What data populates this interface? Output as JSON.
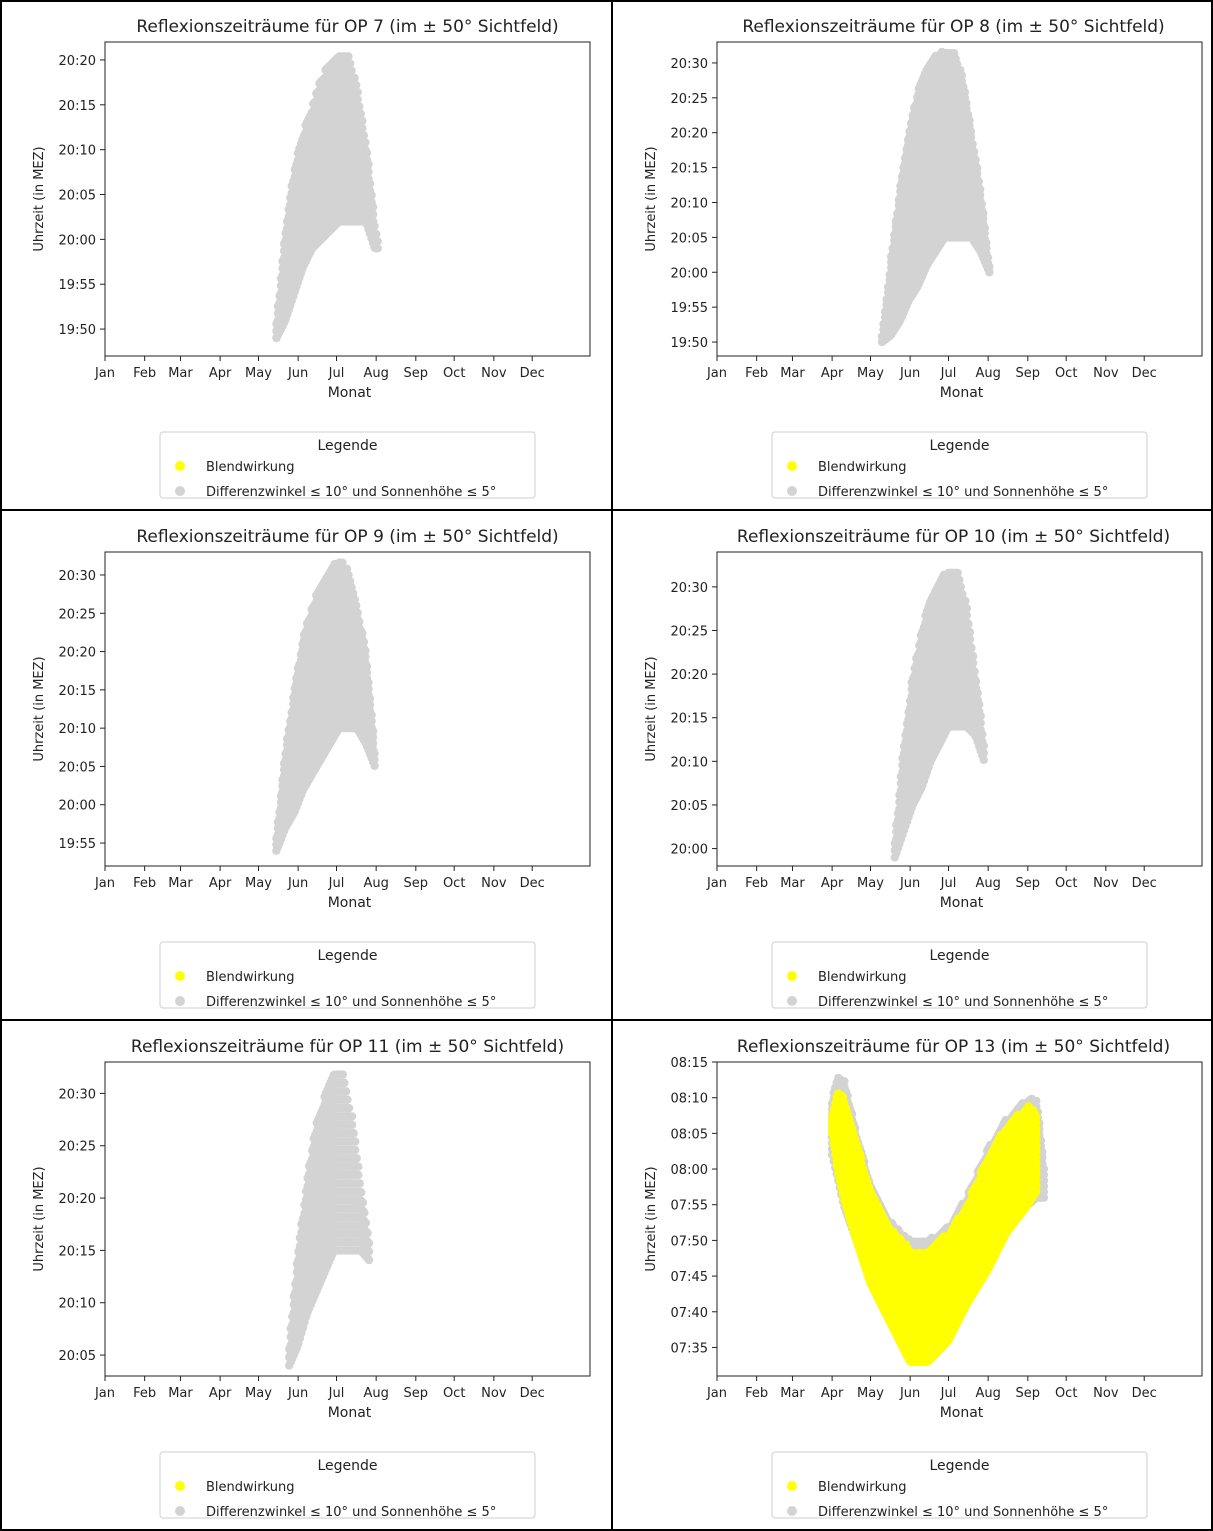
{
  "xlabel": "Monat",
  "ylabel": "Uhrzeit (in MEZ)",
  "month_ticks": [
    "Jan",
    "Feb",
    "Mar",
    "Apr",
    "May",
    "Jun",
    "Jul",
    "Aug",
    "Sep",
    "Oct",
    "Nov",
    "Dec"
  ],
  "legend": {
    "title": "Legende",
    "entries": [
      {
        "label": "Blendwirkung",
        "color": "#ffff00"
      },
      {
        "label": "Differenzwinkel ≤ 10° und Sonnenhöhe ≤ 5°",
        "color": "#d3d3d3"
      }
    ]
  },
  "chart_data": [
    {
      "type": "scatter",
      "title": "Reflexionszeiträume für OP 7 (im ± 50° Sichtfeld)",
      "xlabel": "Monat",
      "ylabel": "Uhrzeit (in MEZ)",
      "xlim": [
        "Jan",
        "Dec"
      ],
      "ylim": [
        "19:47",
        "20:22"
      ],
      "yticks": [
        "19:50",
        "19:55",
        "20:00",
        "20:05",
        "20:10",
        "20:15",
        "20:20"
      ],
      "series": [
        {
          "name": "Differenzwinkel ≤ 10° und Sonnenhöhe ≤ 5°",
          "color": "#d3d3d3",
          "x": [
            "2023-05-15",
            "2023-05-22",
            "2023-05-29",
            "2023-06-05",
            "2023-06-12",
            "2023-06-19",
            "2023-06-26",
            "2023-07-03",
            "2023-07-10",
            "2023-07-17",
            "2023-07-24",
            "2023-07-31",
            "2023-08-03"
          ],
          "y_min": [
            "19:49",
            "19:51",
            "19:54",
            "19:57",
            "19:59",
            "20:00",
            "20:01",
            "20:02",
            "20:02",
            "20:02",
            "20:02",
            "19:59",
            "19:59"
          ],
          "y_max": [
            "19:51",
            "20:01",
            "20:08",
            "20:12",
            "20:15",
            "20:18",
            "20:20",
            "20:21",
            "20:21",
            "20:17",
            "20:11",
            "20:02",
            "20:00"
          ]
        },
        {
          "name": "Blendwirkung",
          "color": "#ffff00",
          "x": [],
          "y_min": [],
          "y_max": []
        }
      ]
    },
    {
      "type": "scatter",
      "title": "Reflexionszeiträume für OP 8 (im ± 50° Sichtfeld)",
      "xlabel": "Monat",
      "ylabel": "Uhrzeit (in MEZ)",
      "xlim": [
        "Jan",
        "Dec"
      ],
      "ylim": [
        "19:48",
        "20:33"
      ],
      "yticks": [
        "19:50",
        "19:55",
        "20:00",
        "20:05",
        "20:10",
        "20:15",
        "20:20",
        "20:25",
        "20:30"
      ],
      "series": [
        {
          "name": "Differenzwinkel ≤ 10° und Sonnenhöhe ≤ 5°",
          "color": "#d3d3d3",
          "x": [
            "2023-05-10",
            "2023-05-17",
            "2023-05-24",
            "2023-05-31",
            "2023-06-07",
            "2023-06-14",
            "2023-06-21",
            "2023-06-28",
            "2023-07-05",
            "2023-07-12",
            "2023-07-19",
            "2023-07-26",
            "2023-08-02"
          ],
          "y_min": [
            "19:50",
            "19:51",
            "19:53",
            "19:56",
            "19:58",
            "20:01",
            "20:03",
            "20:05",
            "20:05",
            "20:05",
            "20:05",
            "20:03",
            "20:00"
          ],
          "y_max": [
            "19:51",
            "20:02",
            "20:12",
            "20:20",
            "20:26",
            "20:29",
            "20:31",
            "20:32",
            "20:32",
            "20:28",
            "20:20",
            "20:12",
            "20:01"
          ]
        },
        {
          "name": "Blendwirkung",
          "color": "#ffff00",
          "x": [],
          "y_min": [],
          "y_max": []
        }
      ]
    },
    {
      "type": "scatter",
      "title": "Reflexionszeiträume für OP 9 (im ± 50° Sichtfeld)",
      "xlabel": "Monat",
      "ylabel": "Uhrzeit (in MEZ)",
      "xlim": [
        "Jan",
        "Dec"
      ],
      "ylim": [
        "19:52",
        "20:33"
      ],
      "yticks": [
        "19:55",
        "20:00",
        "20:05",
        "20:10",
        "20:15",
        "20:20",
        "20:25",
        "20:30"
      ],
      "series": [
        {
          "name": "Differenzwinkel ≤ 10° und Sonnenhöhe ≤ 5°",
          "color": "#d3d3d3",
          "x": [
            "2023-05-15",
            "2023-05-22",
            "2023-05-29",
            "2023-06-05",
            "2023-06-12",
            "2023-06-19",
            "2023-06-26",
            "2023-07-03",
            "2023-07-10",
            "2023-07-17",
            "2023-07-24",
            "2023-07-31"
          ],
          "y_min": [
            "19:54",
            "19:57",
            "19:59",
            "20:02",
            "20:04",
            "20:06",
            "20:08",
            "20:10",
            "20:10",
            "20:10",
            "20:08",
            "20:05"
          ],
          "y_max": [
            "19:56",
            "20:07",
            "20:15",
            "20:22",
            "20:26",
            "20:29",
            "20:31",
            "20:32",
            "20:31",
            "20:26",
            "20:20",
            "20:07"
          ]
        },
        {
          "name": "Blendwirkung",
          "color": "#ffff00",
          "x": [],
          "y_min": [],
          "y_max": []
        }
      ]
    },
    {
      "type": "scatter",
      "title": "Reflexionszeiträume für OP 10 (im ± 50° Sichtfeld)",
      "xlabel": "Monat",
      "ylabel": "Uhrzeit (in MEZ)",
      "xlim": [
        "Jan",
        "Dec"
      ],
      "ylim": [
        "19:58",
        "20:34"
      ],
      "yticks": [
        "20:00",
        "20:05",
        "20:10",
        "20:15",
        "20:20",
        "20:25",
        "20:30"
      ],
      "series": [
        {
          "name": "Differenzwinkel ≤ 10° und Sonnenhöhe ≤ 5°",
          "color": "#d3d3d3",
          "x": [
            "2023-05-20",
            "2023-05-27",
            "2023-06-03",
            "2023-06-10",
            "2023-06-17",
            "2023-06-24",
            "2023-07-01",
            "2023-07-08",
            "2023-07-15",
            "2023-07-22",
            "2023-07-29"
          ],
          "y_min": [
            "19:59",
            "20:02",
            "20:05",
            "20:07",
            "20:10",
            "20:12",
            "20:14",
            "20:14",
            "20:14",
            "20:13",
            "20:10"
          ],
          "y_max": [
            "20:01",
            "20:12",
            "20:20",
            "20:25",
            "20:29",
            "20:31",
            "20:32",
            "20:32",
            "20:28",
            "20:20",
            "20:12"
          ]
        },
        {
          "name": "Blendwirkung",
          "color": "#ffff00",
          "x": [],
          "y_min": [],
          "y_max": []
        }
      ]
    },
    {
      "type": "scatter",
      "title": "Reflexionszeiträume für OP 11 (im ± 50° Sichtfeld)",
      "xlabel": "Monat",
      "ylabel": "Uhrzeit (in MEZ)",
      "xlim": [
        "Jan",
        "Dec"
      ],
      "ylim": [
        "20:03",
        "20:33"
      ],
      "yticks": [
        "20:05",
        "20:10",
        "20:15",
        "20:20",
        "20:25",
        "20:30"
      ],
      "series": [
        {
          "name": "Differenzwinkel ≤ 10° und Sonnenhöhe ≤ 5°",
          "color": "#d3d3d3",
          "x": [
            "2023-05-25",
            "2023-06-01",
            "2023-06-08",
            "2023-06-15",
            "2023-06-22",
            "2023-06-29",
            "2023-07-06",
            "2023-07-13",
            "2023-07-20",
            "2023-07-27"
          ],
          "y_min": [
            "20:04",
            "20:06",
            "20:09",
            "20:11",
            "20:13",
            "20:15",
            "20:15",
            "20:15",
            "20:15",
            "20:14"
          ],
          "y_max": [
            "20:06",
            "20:15",
            "20:22",
            "20:27",
            "20:30",
            "20:32",
            "20:32",
            "20:28",
            "20:21",
            "20:16"
          ]
        },
        {
          "name": "Blendwirkung",
          "color": "#ffff00",
          "x": [],
          "y_min": [],
          "y_max": []
        }
      ]
    },
    {
      "type": "scatter",
      "title": "Reflexionszeiträume für OP 13 (im ± 50° Sichtfeld)",
      "xlabel": "Monat",
      "ylabel": "Uhrzeit (in MEZ)",
      "xlim": [
        "Jan",
        "Dec"
      ],
      "ylim": [
        "07:31",
        "08:15"
      ],
      "yticks": [
        "07:35",
        "07:40",
        "07:45",
        "07:50",
        "07:55",
        "08:00",
        "08:05",
        "08:10",
        "08:15"
      ],
      "series": [
        {
          "name": "Differenzwinkel ≤ 10° und Sonnenhöhe ≤ 5°",
          "color": "#d3d3d3",
          "x": [
            "2023-04-01",
            "2023-04-05",
            "2023-04-10",
            "2023-04-20",
            "2023-05-01",
            "2023-05-15",
            "2023-06-01",
            "2023-06-15",
            "2023-07-01",
            "2023-07-15",
            "2023-08-01",
            "2023-08-15",
            "2023-09-01",
            "2023-09-08",
            "2023-09-14"
          ],
          "y_min": [
            "08:02",
            "07:59",
            "07:55",
            "07:50",
            "07:44",
            "07:39",
            "07:33",
            "07:33",
            "07:36",
            "07:41",
            "07:46",
            "07:51",
            "07:55",
            "07:56",
            "07:56"
          ],
          "y_max": [
            "08:10",
            "08:13",
            "08:13",
            "08:05",
            "07:58",
            "07:53",
            "07:50",
            "07:50",
            "07:52",
            "07:56",
            "08:03",
            "08:07",
            "08:10",
            "08:10",
            "08:00"
          ]
        },
        {
          "name": "Blendwirkung",
          "color": "#ffff00",
          "x": [
            "2023-04-01",
            "2023-04-05",
            "2023-04-10",
            "2023-04-20",
            "2023-05-01",
            "2023-05-15",
            "2023-06-01",
            "2023-06-15",
            "2023-07-01",
            "2023-07-15",
            "2023-08-01",
            "2023-08-15",
            "2023-09-01",
            "2023-09-08"
          ],
          "y_min": [
            "08:05",
            "08:00",
            "07:56",
            "07:50",
            "07:44",
            "07:39",
            "07:33",
            "07:33",
            "07:36",
            "07:41",
            "07:46",
            "07:51",
            "07:55",
            "07:57"
          ],
          "y_max": [
            "08:08",
            "08:11",
            "08:10",
            "08:04",
            "07:57",
            "07:52",
            "07:49",
            "07:49",
            "07:51",
            "07:55",
            "08:02",
            "08:06",
            "08:09",
            "08:08"
          ]
        }
      ]
    }
  ]
}
